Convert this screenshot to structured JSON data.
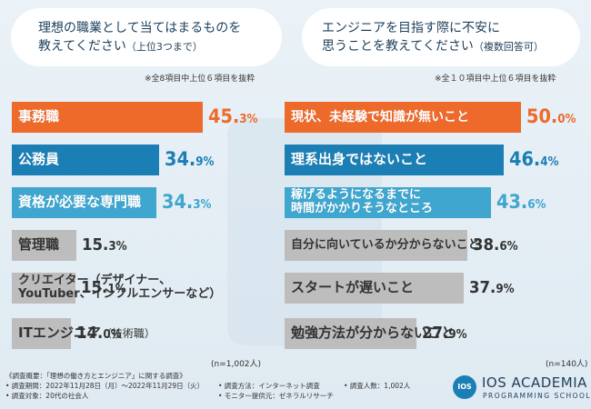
{
  "chart_data": [
    {
      "type": "bar",
      "orientation": "horizontal",
      "title_lines": [
        "理想の職業として当てはまるものを",
        "教えてください"
      ],
      "title_note": "（上位3つまで）",
      "source_note": "※全8項目中上位６項目を抜粋",
      "n_note": "(n=1,002人)",
      "categories": [
        {
          "label": [
            "事務職"
          ],
          "sub": ""
        },
        {
          "label": [
            "公務員"
          ],
          "sub": ""
        },
        {
          "label": [
            "資格が必要な専門職"
          ],
          "sub": ""
        },
        {
          "label": [
            "管理職"
          ],
          "sub": ""
        },
        {
          "label": [
            "クリエイター（デザイナー、",
            "YouTuber、インフルエンサーなど）"
          ],
          "sub": ""
        },
        {
          "label": [
            "ITエンジニア"
          ],
          "sub": "（技術職）"
        }
      ],
      "values": [
        45.3,
        34.9,
        34.3,
        15.3,
        15.1,
        14.0
      ],
      "value_parts": [
        [
          "45.",
          "3"
        ],
        [
          "34.",
          "9"
        ],
        [
          "34.",
          "3"
        ],
        [
          "15.",
          "3"
        ],
        [
          "15.",
          "1"
        ],
        [
          "14.",
          "0"
        ]
      ],
      "unit": "%",
      "xlim": [
        0,
        50
      ],
      "colors": [
        "#ee6a2b",
        "#1b7fb5",
        "#3fa6cf",
        "#bdbdbd",
        "#bdbdbd",
        "#bdbdbd"
      ]
    },
    {
      "type": "bar",
      "orientation": "horizontal",
      "title_lines": [
        "エンジニアを目指す際に不安に",
        "思うことを教えてください"
      ],
      "title_note": "（複数回答可）",
      "source_note": "※全１０項目中上位６項目を抜粋",
      "n_note": "(n=140人)",
      "categories": [
        {
          "label": [
            "現状、未経験で知識が無いこと"
          ],
          "sub": ""
        },
        {
          "label": [
            "理系出身ではないこと"
          ],
          "sub": ""
        },
        {
          "label": [
            "稼げるようになるまでに",
            "時間がかかりそうなところ"
          ],
          "sub": ""
        },
        {
          "label": [
            "自分に向いているか分からないこと"
          ],
          "sub": ""
        },
        {
          "label": [
            "スタートが遅いこと"
          ],
          "sub": ""
        },
        {
          "label": [
            "勉強方法が分からないこと"
          ],
          "sub": ""
        }
      ],
      "values": [
        50.0,
        46.4,
        43.6,
        38.6,
        37.9,
        27.9
      ],
      "value_parts": [
        [
          "50.",
          "0"
        ],
        [
          "46.",
          "4"
        ],
        [
          "43.",
          "6"
        ],
        [
          "38.",
          "6"
        ],
        [
          "37.",
          "9"
        ],
        [
          "27.",
          "9"
        ]
      ],
      "unit": "%",
      "xlim": [
        0,
        50
      ],
      "colors": [
        "#ee6a2b",
        "#1b7fb5",
        "#3fa6cf",
        "#bdbdbd",
        "#bdbdbd",
        "#bdbdbd"
      ]
    }
  ],
  "footer": {
    "lines": [
      "《調査概要：「理想の働き方とエンジニア」に関する調査》",
      "• 調査期間：2022年11月28日（月）〜2022年11月29日（火）",
      "• 調査対象：20代の社会人",
      "• 調査方法：インターネット調査",
      "• モニター提供元：ゼネラルリサーチ",
      "• 調査人数：1,002人"
    ]
  },
  "logo": {
    "mark": "IOS",
    "name": "IOS ACADEMIA",
    "sub": "PROGRAMMING SCHOOL"
  }
}
